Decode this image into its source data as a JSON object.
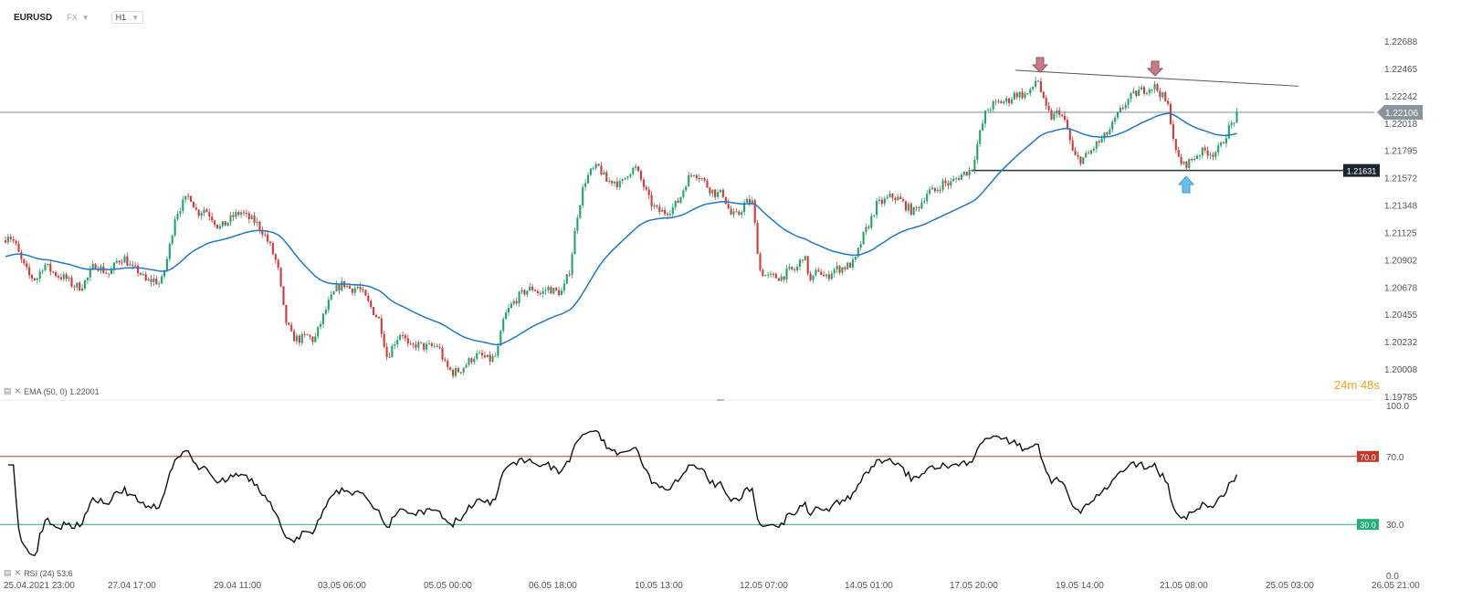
{
  "header": {
    "symbol": "EURUSD",
    "market": "FX",
    "timeframe": "H1"
  },
  "indicators": {
    "ema_label": "EMA (50, 0) 1.22001",
    "rsi_label": "RSI (24) 53.6"
  },
  "countdown": {
    "min_value": "24",
    "min_unit": "m",
    "sec_value": "48",
    "sec_unit": "s"
  },
  "colors": {
    "bull": "#26a269",
    "bear": "#d03a3a",
    "ema": "#1f78c8",
    "rsi_line": "#111111",
    "rsi_overbought": "#c0392b",
    "rsi_oversold": "#27ae78",
    "current_price_tag": "#8a949c",
    "support_tag": "#1b2631",
    "marker_top": "#c47b85",
    "marker_bottom": "#6bbfe6"
  },
  "chart_data": [
    {
      "type": "candlestick",
      "title": "EURUSD H1",
      "y_ticks": [
        "1.22688",
        "1.22465",
        "1.22242",
        "1.22018",
        "1.21795",
        "1.21572",
        "1.21348",
        "1.21125",
        "1.20902",
        "1.20678",
        "1.20455",
        "1.20232",
        "1.20008",
        "1.19785"
      ],
      "ylim": [
        1.19785,
        1.22688
      ],
      "x_ticks": [
        "25.04.2021 23:00",
        "27.04 17:00",
        "29.04 11:00",
        "03.05 06:00",
        "05.05 00:00",
        "06.05 18:00",
        "10.05 13:00",
        "12.05 07:00",
        "14.05 01:00",
        "17.05 20:00",
        "19.05 14:00",
        "21.05 08:00",
        "25.05 03:00",
        "26.05 21:00"
      ],
      "current_price": "1.22106",
      "support_level": "1.21631",
      "close_path": [
        [
          0,
          1.2096
        ],
        [
          8,
          1.2112
        ],
        [
          16,
          1.2104
        ],
        [
          24,
          1.2088
        ],
        [
          32,
          1.2077
        ],
        [
          40,
          1.2074
        ],
        [
          48,
          1.2087
        ],
        [
          56,
          1.2081
        ],
        [
          64,
          1.2077
        ],
        [
          72,
          1.2075
        ],
        [
          80,
          1.2069
        ],
        [
          88,
          1.2068
        ],
        [
          96,
          1.2075
        ],
        [
          104,
          1.2087
        ],
        [
          112,
          1.2082
        ],
        [
          120,
          1.2078
        ],
        [
          128,
          1.2089
        ],
        [
          136,
          1.2092
        ],
        [
          144,
          1.2083
        ],
        [
          152,
          1.2081
        ],
        [
          160,
          1.2072
        ],
        [
          168,
          1.2074
        ],
        [
          176,
          1.207
        ],
        [
          184,
          1.2094
        ],
        [
          192,
          1.2127
        ],
        [
          200,
          1.2136
        ],
        [
          208,
          1.2143
        ],
        [
          216,
          1.2128
        ],
        [
          224,
          1.2132
        ],
        [
          232,
          1.2125
        ],
        [
          240,
          1.2116
        ],
        [
          248,
          1.212
        ],
        [
          256,
          1.2126
        ],
        [
          264,
          1.2129
        ],
        [
          272,
          1.2124
        ],
        [
          280,
          1.2121
        ],
        [
          288,
          1.2113
        ],
        [
          296,
          1.2101
        ],
        [
          304,
          1.2085
        ],
        [
          312,
          1.2042
        ],
        [
          320,
          1.2027
        ],
        [
          328,
          1.2025
        ],
        [
          336,
          1.2028
        ],
        [
          344,
          1.2024
        ],
        [
          352,
          1.204
        ],
        [
          360,
          1.2055
        ],
        [
          368,
          1.2066
        ],
        [
          376,
          1.2071
        ],
        [
          384,
          1.2066
        ],
        [
          392,
          1.2068
        ],
        [
          400,
          1.2059
        ],
        [
          408,
          1.2049
        ],
        [
          416,
          1.204
        ],
        [
          424,
          1.201
        ],
        [
          432,
          1.2023
        ],
        [
          440,
          1.2032
        ],
        [
          448,
          1.2017
        ],
        [
          456,
          1.2021
        ],
        [
          464,
          1.2019
        ],
        [
          472,
          1.2019
        ],
        [
          480,
          1.202
        ],
        [
          488,
          1.2003
        ],
        [
          496,
          1.1998
        ],
        [
          504,
          1.2
        ],
        [
          512,
          1.2006
        ],
        [
          520,
          1.2012
        ],
        [
          528,
          1.2011
        ],
        [
          536,
          1.2008
        ],
        [
          544,
          1.2012
        ],
        [
          552,
          1.2043
        ],
        [
          560,
          1.2053
        ],
        [
          568,
          1.206
        ],
        [
          576,
          1.2065
        ],
        [
          584,
          1.2067
        ],
        [
          592,
          1.2062
        ],
        [
          600,
          1.2067
        ],
        [
          608,
          1.2064
        ],
        [
          616,
          1.2064
        ],
        [
          624,
          1.2082
        ],
        [
          632,
          1.2126
        ],
        [
          640,
          1.2154
        ],
        [
          648,
          1.2163
        ],
        [
          656,
          1.2166
        ],
        [
          664,
          1.2154
        ],
        [
          672,
          1.2155
        ],
        [
          680,
          1.2151
        ],
        [
          688,
          1.2162
        ],
        [
          696,
          1.2165
        ],
        [
          704,
          1.2152
        ],
        [
          712,
          1.2137
        ],
        [
          720,
          1.213
        ],
        [
          728,
          1.2129
        ],
        [
          736,
          1.2132
        ],
        [
          744,
          1.2139
        ],
        [
          752,
          1.2155
        ],
        [
          760,
          1.2162
        ],
        [
          768,
          1.2157
        ],
        [
          776,
          1.2149
        ],
        [
          784,
          1.2144
        ],
        [
          792,
          1.2144
        ],
        [
          800,
          1.2127
        ],
        [
          808,
          1.2126
        ],
        [
          816,
          1.2137
        ],
        [
          824,
          1.2137
        ],
        [
          832,
          1.2082
        ],
        [
          840,
          1.2076
        ],
        [
          848,
          1.2076
        ],
        [
          856,
          1.2076
        ],
        [
          864,
          1.2081
        ],
        [
          872,
          1.2082
        ],
        [
          880,
          1.2095
        ],
        [
          888,
          1.2071
        ],
        [
          896,
          1.2083
        ],
        [
          904,
          1.2074
        ],
        [
          912,
          1.2082
        ],
        [
          920,
          1.2083
        ],
        [
          928,
          1.2085
        ],
        [
          936,
          1.2088
        ],
        [
          944,
          1.2107
        ],
        [
          952,
          1.212
        ],
        [
          960,
          1.2135
        ],
        [
          968,
          1.2138
        ],
        [
          976,
          1.2142
        ],
        [
          984,
          1.214
        ],
        [
          992,
          1.2134
        ],
        [
          1000,
          1.2129
        ],
        [
          1008,
          1.2136
        ],
        [
          1016,
          1.2146
        ],
        [
          1024,
          1.2146
        ],
        [
          1032,
          1.2153
        ],
        [
          1040,
          1.2152
        ],
        [
          1048,
          1.2157
        ],
        [
          1056,
          1.2161
        ],
        [
          1064,
          1.2164
        ],
        [
          1072,
          1.219
        ],
        [
          1080,
          1.2212
        ],
        [
          1088,
          1.2217
        ],
        [
          1096,
          1.2219
        ],
        [
          1104,
          1.222
        ],
        [
          1112,
          1.2226
        ],
        [
          1120,
          1.2225
        ],
        [
          1128,
          1.2226
        ],
        [
          1136,
          1.224
        ],
        [
          1144,
          1.2215
        ],
        [
          1152,
          1.2206
        ],
        [
          1160,
          1.2212
        ],
        [
          1168,
          1.2199
        ],
        [
          1176,
          1.2174
        ],
        [
          1184,
          1.2172
        ],
        [
          1192,
          1.2176
        ],
        [
          1200,
          1.2184
        ],
        [
          1208,
          1.2189
        ],
        [
          1216,
          1.2197
        ],
        [
          1224,
          1.2208
        ],
        [
          1232,
          1.2218
        ],
        [
          1240,
          1.2224
        ],
        [
          1248,
          1.2228
        ],
        [
          1256,
          1.223
        ],
        [
          1264,
          1.2232
        ],
        [
          1272,
          1.2225
        ],
        [
          1280,
          1.2214
        ],
        [
          1288,
          1.2176
        ],
        [
          1296,
          1.2167
        ],
        [
          1304,
          1.2171
        ],
        [
          1312,
          1.2177
        ],
        [
          1320,
          1.2179
        ],
        [
          1328,
          1.2177
        ],
        [
          1336,
          1.2181
        ],
        [
          1344,
          1.2195
        ],
        [
          1352,
          1.2205
        ],
        [
          1360,
          1.2213
        ],
        [
          1368,
          1.2222
        ],
        [
          1376,
          1.2211
        ]
      ]
    },
    {
      "type": "line",
      "title": "RSI (24)",
      "y_ticks": [
        "100.0",
        "70.0",
        "30.0",
        "0.0"
      ],
      "ylim": [
        0,
        100
      ],
      "levels": [
        70.0,
        30.0
      ],
      "level_labels": [
        "70.0",
        "30.0"
      ],
      "last_value": 53.6
    }
  ]
}
